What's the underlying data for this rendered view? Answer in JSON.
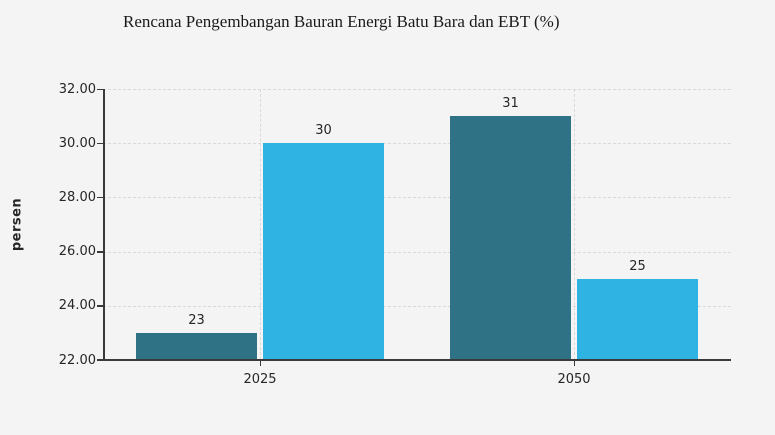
{
  "chart_data": {
    "type": "bar",
    "title": "Rencana Pengembangan Bauran Energi Batu Bara dan EBT (%)",
    "xlabel": "",
    "ylabel": "persen",
    "categories": [
      "2025",
      "2050"
    ],
    "series": [
      {
        "color": "#2f7285",
        "values": [
          23,
          31
        ],
        "value_labels": [
          "23",
          "31"
        ]
      },
      {
        "color": "#2fb3e3",
        "values": [
          30,
          25
        ],
        "value_labels": [
          "30",
          "25"
        ]
      }
    ],
    "ylim": [
      22,
      32
    ],
    "yticks": [
      22,
      24,
      26,
      28,
      30,
      32
    ],
    "ytick_labels": [
      "22.00",
      "24.00",
      "26.00",
      "28.00",
      "30.00",
      "32.00"
    ],
    "grid": "dashed",
    "legend_position": "none"
  },
  "style": {
    "background_color": "#f4f4f5",
    "axis_color": "#3a3a3a",
    "grid_color": "#d9d9d9",
    "text_color": "#262626",
    "bar_color_dark": "#2f7285",
    "bar_color_light": "#2fb3e3"
  }
}
